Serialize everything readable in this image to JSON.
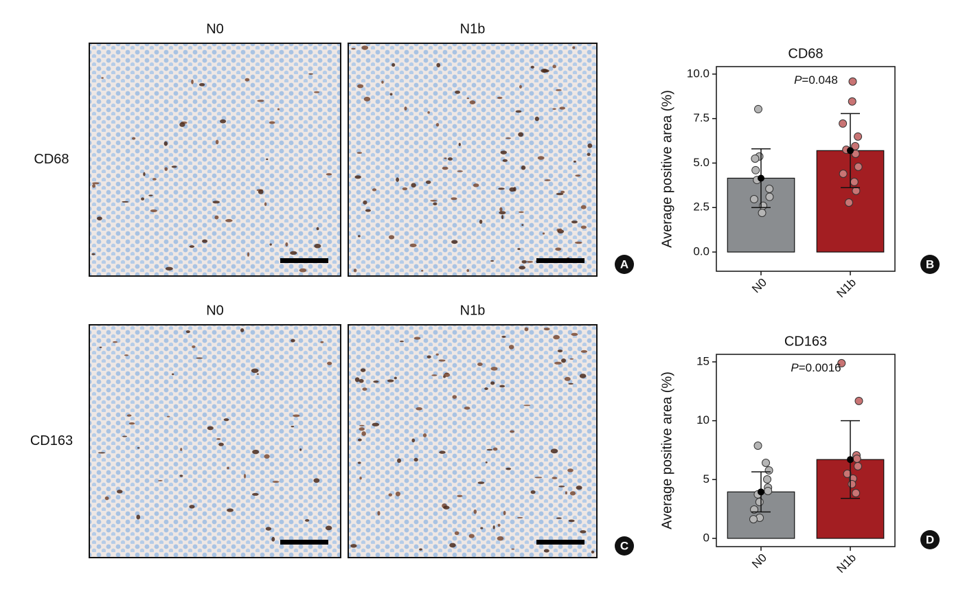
{
  "panels": [
    {
      "row_label": "CD68",
      "columns": [
        "N0",
        "N1b"
      ],
      "letter": "A"
    },
    {
      "row_label": "CD163",
      "columns": [
        "N0",
        "N1b"
      ],
      "letter": "C"
    }
  ],
  "chart_data": [
    {
      "type": "bar",
      "title": "CD68",
      "letter": "B",
      "annotation": "P=0.048",
      "ylabel": "Average positive area (%)",
      "categories": [
        "N0",
        "N1b"
      ],
      "values": [
        4.15,
        5.7
      ],
      "errors": [
        1.65,
        2.08
      ],
      "colors": [
        "#8a8d90",
        "#a31e22"
      ],
      "point_colors": [
        "#b5b5b5",
        "#c97474"
      ],
      "points": [
        [
          8.03,
          5.37,
          5.25,
          4.6,
          4.05,
          3.55,
          3.1,
          2.97,
          2.6,
          2.2
        ],
        [
          9.58,
          8.46,
          7.22,
          6.49,
          5.95,
          5.75,
          5.52,
          4.79,
          4.4,
          3.94,
          3.44,
          2.78
        ]
      ],
      "ylim": [
        -1.08,
        10.42
      ],
      "yticks": [
        {
          "value": 0,
          "label": "0.0"
        },
        {
          "value": 2.5,
          "label": "2.5"
        },
        {
          "value": 5,
          "label": "5.0"
        },
        {
          "value": 7.5,
          "label": "7.5"
        },
        {
          "value": 10,
          "label": "10.0"
        }
      ]
    },
    {
      "type": "bar",
      "title": "CD163",
      "letter": "D",
      "annotation": "P=0.0016",
      "ylabel": "Average positive area (%)",
      "categories": [
        "N0",
        "N1b"
      ],
      "values": [
        3.95,
        6.7
      ],
      "errors": [
        1.7,
        3.3
      ],
      "colors": [
        "#8a8d90",
        "#a31e22"
      ],
      "point_colors": [
        "#b5b5b5",
        "#c97474"
      ],
      "points": [
        [
          7.88,
          6.42,
          5.78,
          5.02,
          4.32,
          4.03,
          3.74,
          3.09,
          2.45,
          1.75,
          1.63
        ],
        [
          14.89,
          11.68,
          7.06,
          6.77,
          6.13,
          5.49,
          5.08,
          4.61,
          3.85
        ]
      ],
      "ylim": [
        -0.7,
        15.64
      ],
      "yticks": [
        0,
        5,
        10,
        15
      ]
    }
  ]
}
